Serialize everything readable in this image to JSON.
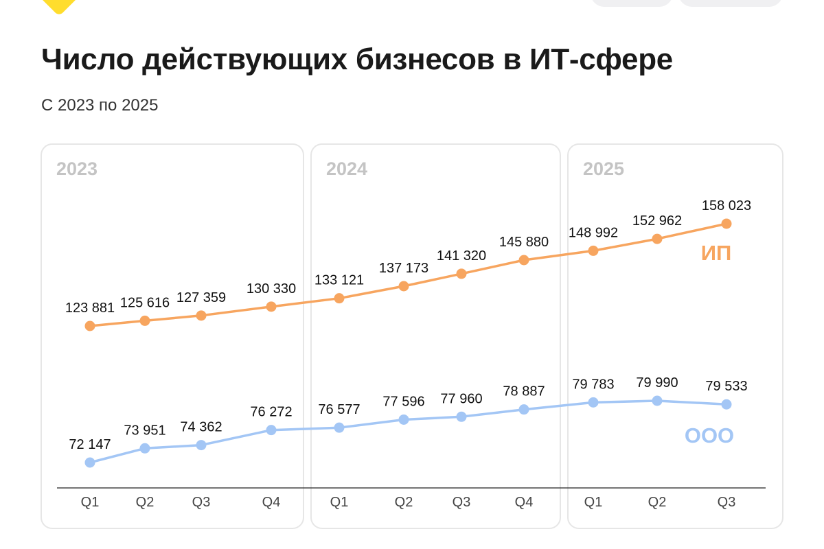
{
  "header": {
    "title": "Число действующих бизнесов в ИТ-сфере",
    "subtitle": "С 2023 по 2025"
  },
  "chart_data": {
    "type": "line",
    "title": "Число действующих бизнесов в ИТ-сфере",
    "subtitle": "С 2023 по 2025",
    "years": [
      "2023",
      "2024",
      "2025"
    ],
    "categories": [
      "Q1",
      "Q2",
      "Q3",
      "Q4",
      "Q1",
      "Q2",
      "Q3",
      "Q4",
      "Q1",
      "Q2",
      "Q3"
    ],
    "ylim": [
      60000,
      165000
    ],
    "series": [
      {
        "name": "ИП",
        "color": "#F7A55F",
        "values": [
          123881,
          125616,
          127359,
          130330,
          133121,
          137173,
          141320,
          145880,
          148992,
          152962,
          158023
        ],
        "labels": [
          "123 881",
          "125 616",
          "127 359",
          "130 330",
          "133 121",
          "137 173",
          "141 320",
          "145 880",
          "148 992",
          "152 962",
          "158 023"
        ]
      },
      {
        "name": "ООО",
        "color": "#A3C6F5",
        "values": [
          72147,
          73951,
          74362,
          76272,
          76577,
          77596,
          77960,
          78887,
          79783,
          79990,
          79533
        ],
        "labels": [
          "72 147",
          "73 951",
          "74 362",
          "76 272",
          "76 577",
          "77 596",
          "77 960",
          "78 887",
          "79 783",
          "79 990",
          "79 533"
        ]
      }
    ],
    "legend": "inline-right",
    "grid": false
  }
}
